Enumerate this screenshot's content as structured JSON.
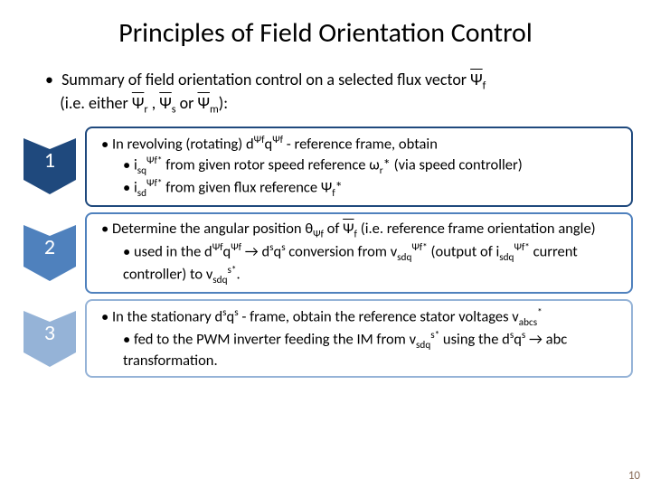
{
  "title": "Principles of Field Orientation Control",
  "summary_prefix": "Summary of field orientation control on a selected flux vector ",
  "summary_flux": "Ψ",
  "summary_flux_sub": "f",
  "summary_line2a": "(i.e. either ",
  "summary_psi_r": "Ψ",
  "summary_psi_r_sub": "r",
  "summary_sep1": " , ",
  "summary_psi_s": "Ψ",
  "summary_psi_s_sub": "s",
  "summary_sep2": " or ",
  "summary_psi_m": "Ψ",
  "summary_psi_m_sub": "m",
  "summary_line2b": "):",
  "steps": [
    {
      "num": "1",
      "color": "#1f497d",
      "border": "#1f497d",
      "l1_a": "In revolving (rotating) d",
      "l1_sup1": "Ψf",
      "l1_b": "q",
      "l1_sup2": "Ψf",
      "l1_c": " - reference frame, obtain",
      "l2a_a": "i",
      "l2a_sub1": "sq",
      "l2a_sup1": "Ψf*",
      "l2a_b": " from given rotor speed reference ω",
      "l2a_sub2": "r",
      "l2a_c": "* (via speed controller)",
      "l2b_a": "i",
      "l2b_sub1": "sd",
      "l2b_sup1": "Ψf*",
      "l2b_b": " from  given flux reference Ψ",
      "l2b_sub2": "f",
      "l2b_c": "*"
    },
    {
      "num": "2",
      "color": "#4f81bd",
      "border": "#4f81bd",
      "l1_a": "Determine the angular position θ",
      "l1_sub1": "Ψf",
      "l1_b": " of  ",
      "l1_psi": "Ψ",
      "l1_psi_sub": "f",
      "l1_c": " (i.e. reference frame orientation angle)",
      "l2a_a": "used in the d",
      "l2a_sup1": "Ψf",
      "l2a_b": "q",
      "l2a_sup2": "Ψf",
      "l2a_c": " → d",
      "l2a_sup3": "s",
      "l2a_d": "q",
      "l2a_sup4": "s",
      "l2a_e": " conversion from v",
      "l2a_sub1": "sdq",
      "l2a_sup5": "Ψf*",
      "l2a_f": " (output of i",
      "l2a_sub2": "sdq",
      "l2a_sup6": "Ψf*",
      "l2a_g": " current controller) to v",
      "l2a_sub3": "sdq",
      "l2a_sup7": "s*",
      "l2a_h": "."
    },
    {
      "num": "3",
      "color": "#95b3d7",
      "border": "#95b3d7",
      "l1_a": "In the stationary d",
      "l1_sup1": "s",
      "l1_b": "q",
      "l1_sup2": "s",
      "l1_c": " - frame, obtain the reference stator voltages v",
      "l1_sub1": "abcs",
      "l1_sup3": "*",
      "l2a_a": "fed to the PWM inverter feeding the IM from v",
      "l2a_sub1": "sdq",
      "l2a_sup1": "s*",
      "l2a_b": " using the d",
      "l2a_sup2": "s",
      "l2a_c": "q",
      "l2a_sup3": "s",
      "l2a_d": " → abc transformation."
    }
  ],
  "page_num": "10"
}
